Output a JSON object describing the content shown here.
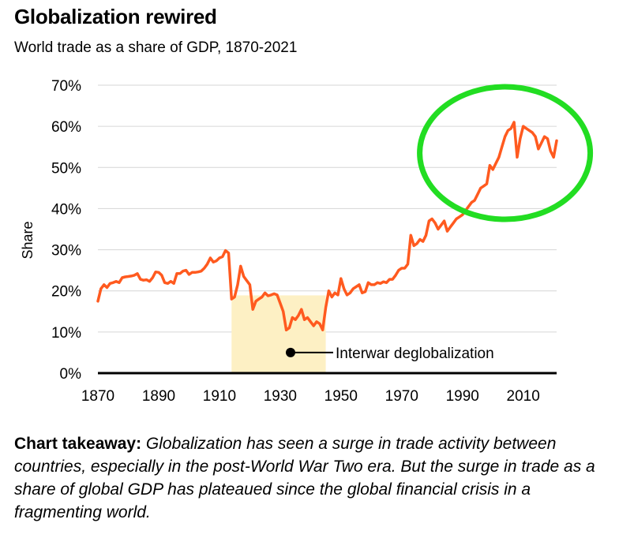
{
  "title": "Globalization rewired",
  "subtitle": "World trade as a share of GDP, 1870-2021",
  "chart_data": {
    "type": "line",
    "ylabel": "Share",
    "ylim": [
      0,
      70
    ],
    "xlim": [
      1870,
      2021
    ],
    "yticks": [
      "0%",
      "10%",
      "20%",
      "30%",
      "40%",
      "50%",
      "60%",
      "70%"
    ],
    "ytick_values": [
      0,
      10,
      20,
      30,
      40,
      50,
      60,
      70
    ],
    "xticks": [
      "1870",
      "1890",
      "1910",
      "1930",
      "1950",
      "1970",
      "1990",
      "2010"
    ],
    "xtick_values": [
      1870,
      1890,
      1910,
      1930,
      1950,
      1970,
      1990,
      2010
    ],
    "grid": true,
    "line_color": "#ff5a1f",
    "shade_color": "#fdf0c4",
    "highlight_circle_color": "#22dd22",
    "shaded_region": {
      "x_start": 1914,
      "x_end": 1945,
      "label": "Interwar deglobalization"
    },
    "series": [
      {
        "x": [
          1870,
          1871,
          1872,
          1873,
          1874,
          1875,
          1876,
          1877,
          1878,
          1879,
          1880,
          1881,
          1882,
          1883,
          1884,
          1885,
          1886,
          1887,
          1888,
          1889,
          1890,
          1891,
          1892,
          1893,
          1894,
          1895,
          1896,
          1897,
          1898,
          1899,
          1900,
          1901,
          1902,
          1903,
          1904,
          1905,
          1906,
          1907,
          1908,
          1909,
          1910,
          1911,
          1912,
          1913,
          1914,
          1915,
          1916,
          1917,
          1918,
          1919,
          1920,
          1921,
          1922,
          1923,
          1924,
          1925,
          1926,
          1927,
          1928,
          1929,
          1930,
          1931,
          1932,
          1933,
          1934,
          1935,
          1936,
          1937,
          1938,
          1939,
          1940,
          1941,
          1942,
          1943,
          1944,
          1945,
          1946,
          1947,
          1948,
          1949,
          1950,
          1951,
          1952,
          1953,
          1954,
          1955,
          1956,
          1957,
          1958,
          1959,
          1960,
          1961,
          1962,
          1963,
          1964,
          1965,
          1966,
          1967,
          1968,
          1969,
          1970,
          1971,
          1972,
          1973,
          1974,
          1975,
          1976,
          1977,
          1978,
          1979,
          1980,
          1981,
          1982,
          1983,
          1984,
          1985,
          1986,
          1987,
          1988,
          1989,
          1990,
          1991,
          1992,
          1993,
          1994,
          1995,
          1996,
          1997,
          1998,
          1999,
          2000,
          2001,
          2002,
          2003,
          2004,
          2005,
          2006,
          2007,
          2008,
          2009,
          2010,
          2011,
          2012,
          2013,
          2014,
          2015,
          2016,
          2017,
          2018,
          2019,
          2020,
          2021
        ],
        "values": [
          17.5,
          20.5,
          21.5,
          20.8,
          21.8,
          22.0,
          22.3,
          22.0,
          23.2,
          23.4,
          23.5,
          23.6,
          23.8,
          24.2,
          22.8,
          22.6,
          22.7,
          22.3,
          23.2,
          24.6,
          24.5,
          23.8,
          22.0,
          21.8,
          22.3,
          21.8,
          24.2,
          24.2,
          24.8,
          25.0,
          24.0,
          24.5,
          24.5,
          24.6,
          24.8,
          25.5,
          26.5,
          28.0,
          27.0,
          27.3,
          28.0,
          28.3,
          29.8,
          29.2,
          18.0,
          18.5,
          21.5,
          26.0,
          23.5,
          22.5,
          21.5,
          15.5,
          17.5,
          18.0,
          18.5,
          19.5,
          18.8,
          19.0,
          19.3,
          19.0,
          17.0,
          15.0,
          10.5,
          11.0,
          13.5,
          13.0,
          14.0,
          15.5,
          13.0,
          13.5,
          12.5,
          11.5,
          12.5,
          12.0,
          10.5,
          16.0,
          20.0,
          18.5,
          19.5,
          19.0,
          23.0,
          20.5,
          19.0,
          19.5,
          20.5,
          21.0,
          21.5,
          19.5,
          19.8,
          22.0,
          21.5,
          21.5,
          22.0,
          21.8,
          22.2,
          22.0,
          22.8,
          22.8,
          23.8,
          25.0,
          25.5,
          25.5,
          26.5,
          33.5,
          31.0,
          31.5,
          32.5,
          32.0,
          33.5,
          37.0,
          37.5,
          36.5,
          35.0,
          36.0,
          37.0,
          34.5,
          35.5,
          36.5,
          37.5,
          38.0,
          38.5,
          39.5,
          40.5,
          41.5,
          42.0,
          43.5,
          45.0,
          45.5,
          46.0,
          50.5,
          49.5,
          51.0,
          52.5,
          55.0,
          57.5,
          59.0,
          59.5,
          61.0,
          52.5,
          57.0,
          60.0,
          59.5,
          59.0,
          58.5,
          57.5,
          54.5,
          56.0,
          57.5,
          57.0,
          54.0,
          52.5,
          56.5
        ]
      }
    ]
  },
  "takeaway": {
    "lead": "Chart takeaway:",
    "body": " Globalization has seen a surge in trade activity between countries, especially in the post-World War Two era. But the surge in trade as a share of global GDP has plateaued since the global financial crisis in a fragmenting world."
  }
}
